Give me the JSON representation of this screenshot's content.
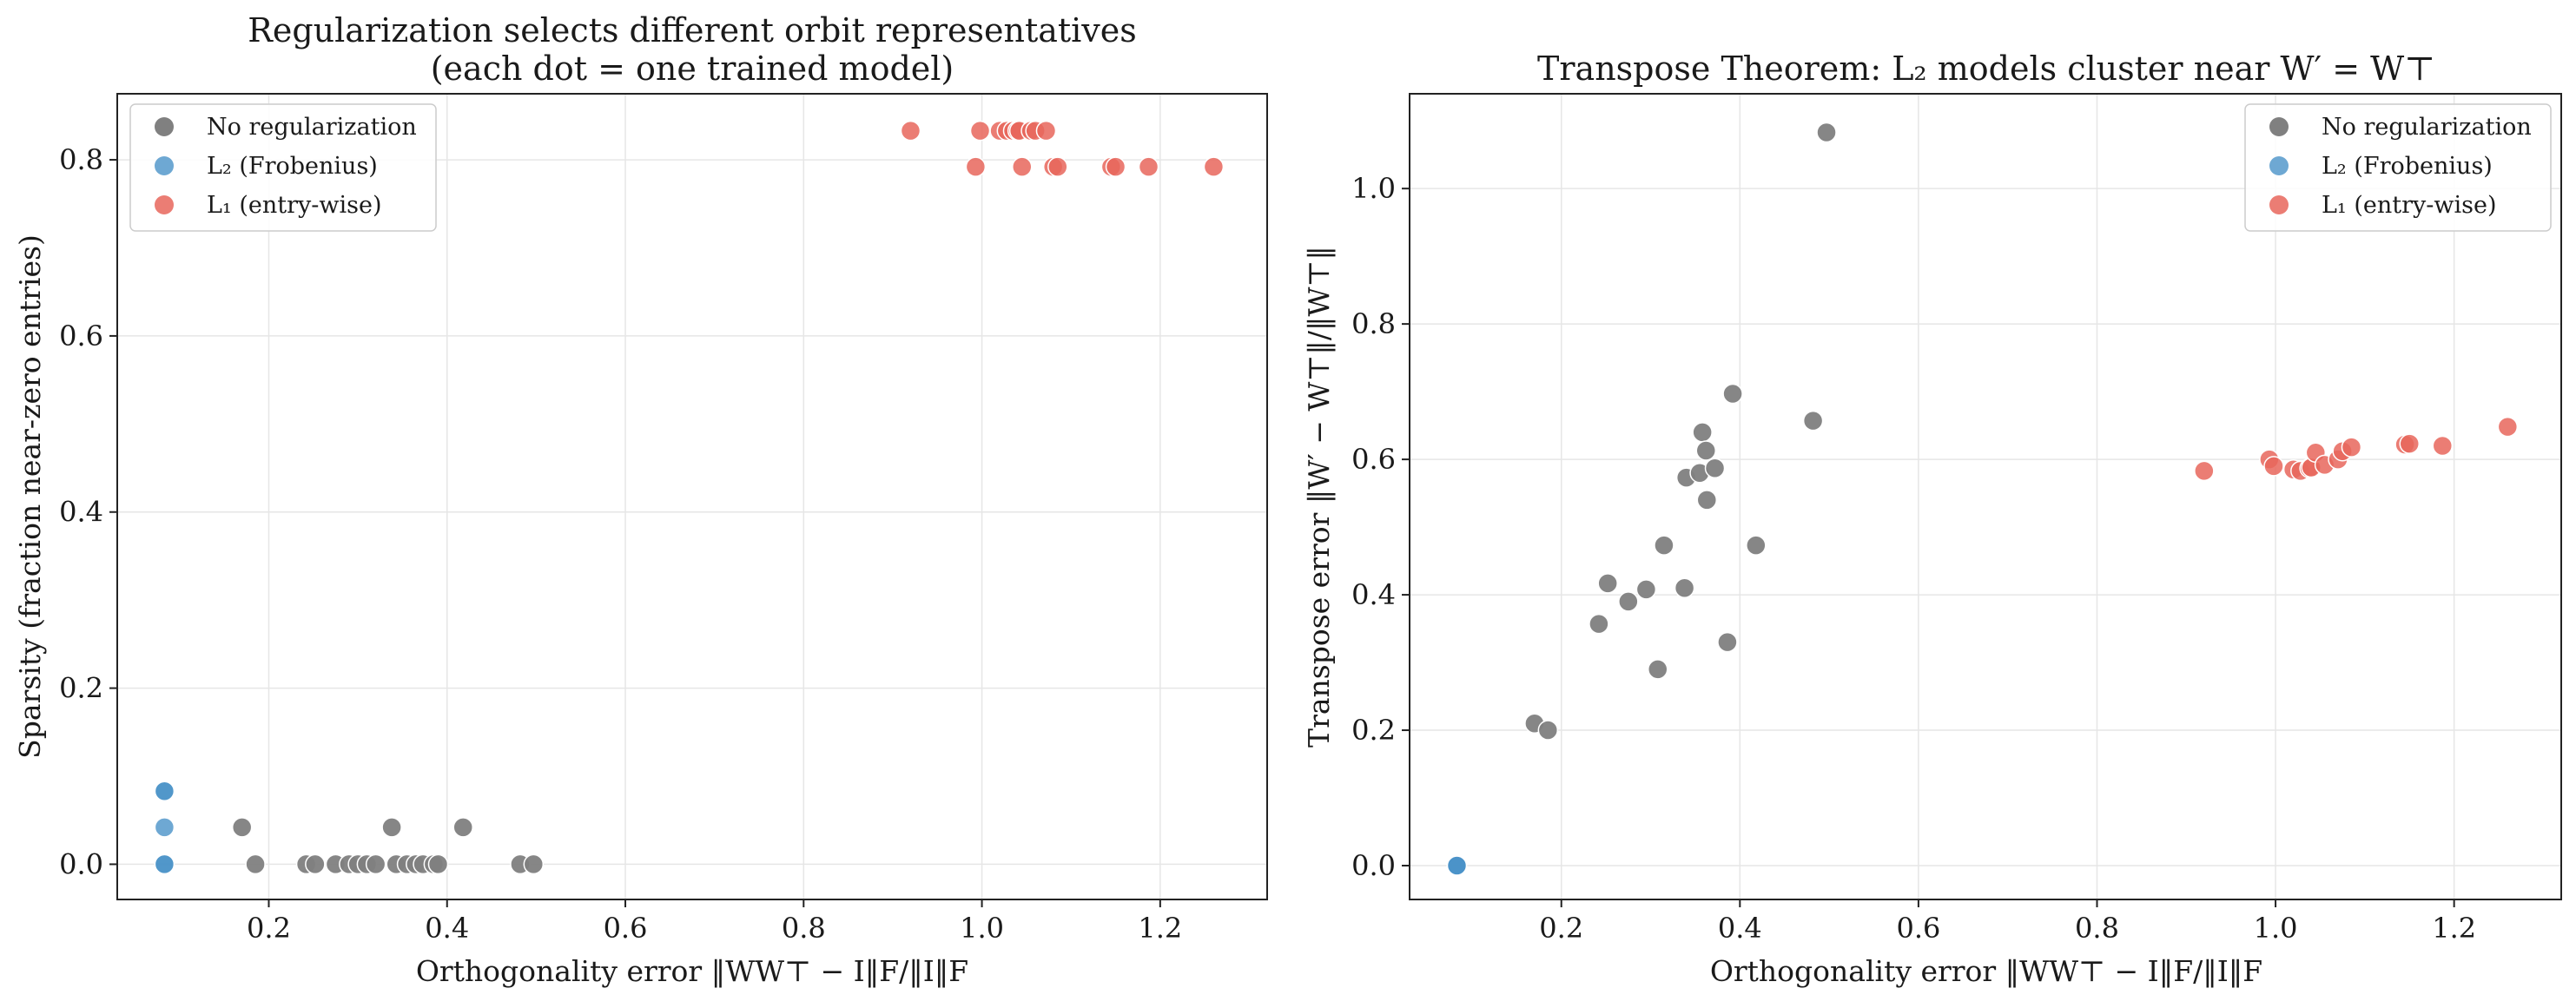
{
  "colors": {
    "none": "#808080",
    "l2": "#4a92c8",
    "l1": "#e8665c"
  },
  "legend": [
    {
      "key": "none",
      "label": "No regularization"
    },
    {
      "key": "l2",
      "label": "L₂ (Frobenius)"
    },
    {
      "key": "l1",
      "label": "L₁ (entry-wise)"
    }
  ],
  "chart_data": [
    {
      "type": "scatter",
      "title": "Regularization selects different orbit representatives",
      "subtitle": "(each dot = one trained model)",
      "xlabel": "Orthogonality error ‖WW⊤ − I‖F/‖I‖F",
      "ylabel": "Sparsity (fraction near-zero entries)",
      "xlim": [
        0.03,
        1.32
      ],
      "ylim": [
        -0.04,
        0.875
      ],
      "xticks": [
        "0.2",
        "0.4",
        "0.6",
        "0.8",
        "1.0",
        "1.2"
      ],
      "yticks": [
        "0.0",
        "0.2",
        "0.4",
        "0.6",
        "0.8"
      ],
      "grid": true,
      "legend_position": "top-left",
      "series": [
        {
          "key": "none",
          "name": "No regularization",
          "x": [
            0.17,
            0.185,
            0.242,
            0.252,
            0.275,
            0.29,
            0.3,
            0.31,
            0.32,
            0.338,
            0.343,
            0.355,
            0.365,
            0.373,
            0.385,
            0.39,
            0.418,
            0.482,
            0.497
          ],
          "y": [
            0.042,
            0.0,
            0.0,
            0.0,
            0.0,
            0.0,
            0.0,
            0.0,
            0.0,
            0.042,
            0.0,
            0.0,
            0.0,
            0.0,
            0.0,
            0.0,
            0.042,
            0.0,
            0.0
          ]
        },
        {
          "key": "l2",
          "name": "L₂ (Frobenius)",
          "x": [
            0.083,
            0.083,
            0.083,
            0.083,
            0.083
          ],
          "y": [
            0.0,
            0.0,
            0.042,
            0.083,
            0.083
          ]
        },
        {
          "key": "l1",
          "name": "L₁ (entry-wise)",
          "x": [
            0.92,
            0.993,
            0.998,
            1.02,
            1.028,
            1.035,
            1.04,
            1.042,
            1.045,
            1.055,
            1.06,
            1.072,
            1.08,
            1.085,
            1.145,
            1.15,
            1.187,
            1.26
          ],
          "y": [
            0.833,
            0.792,
            0.833,
            0.833,
            0.833,
            0.833,
            0.833,
            0.833,
            0.792,
            0.833,
            0.833,
            0.833,
            0.792,
            0.792,
            0.792,
            0.792,
            0.792,
            0.792
          ]
        }
      ]
    },
    {
      "type": "scatter",
      "title": "Transpose Theorem: L₂ models cluster near W′ = W⊤",
      "xlabel": "Orthogonality error ‖WW⊤ − I‖F/‖I‖F",
      "ylabel": "Transpose error ‖W′ − W⊤‖/‖W⊤‖",
      "xlim": [
        0.03,
        1.32
      ],
      "ylim": [
        -0.05,
        1.14
      ],
      "xticks": [
        "0.2",
        "0.4",
        "0.6",
        "0.8",
        "1.0",
        "1.2"
      ],
      "yticks": [
        "0.0",
        "0.2",
        "0.4",
        "0.6",
        "0.8",
        "1.0"
      ],
      "grid": true,
      "legend_position": "top-right",
      "series": [
        {
          "key": "none",
          "name": "No regularization",
          "x": [
            0.17,
            0.185,
            0.242,
            0.252,
            0.275,
            0.295,
            0.308,
            0.315,
            0.338,
            0.34,
            0.355,
            0.358,
            0.362,
            0.363,
            0.372,
            0.386,
            0.392,
            0.418,
            0.482,
            0.497
          ],
          "y": [
            0.21,
            0.2,
            0.357,
            0.417,
            0.39,
            0.408,
            0.29,
            0.473,
            0.41,
            0.573,
            0.58,
            0.64,
            0.613,
            0.54,
            0.587,
            0.33,
            0.697,
            0.473,
            0.657,
            1.083
          ]
        },
        {
          "key": "l2",
          "name": "L₂ (Frobenius)",
          "x": [
            0.083,
            0.083,
            0.083
          ],
          "y": [
            0.0,
            0.0,
            0.0
          ]
        },
        {
          "key": "l1",
          "name": "L₁ (entry-wise)",
          "x": [
            0.92,
            0.993,
            0.998,
            1.02,
            1.028,
            1.038,
            1.04,
            1.045,
            1.055,
            1.07,
            1.075,
            1.085,
            1.145,
            1.15,
            1.187,
            1.26
          ],
          "y": [
            0.583,
            0.6,
            0.59,
            0.585,
            0.583,
            0.587,
            0.588,
            0.61,
            0.592,
            0.6,
            0.612,
            0.618,
            0.622,
            0.623,
            0.62,
            0.648
          ]
        }
      ]
    }
  ]
}
